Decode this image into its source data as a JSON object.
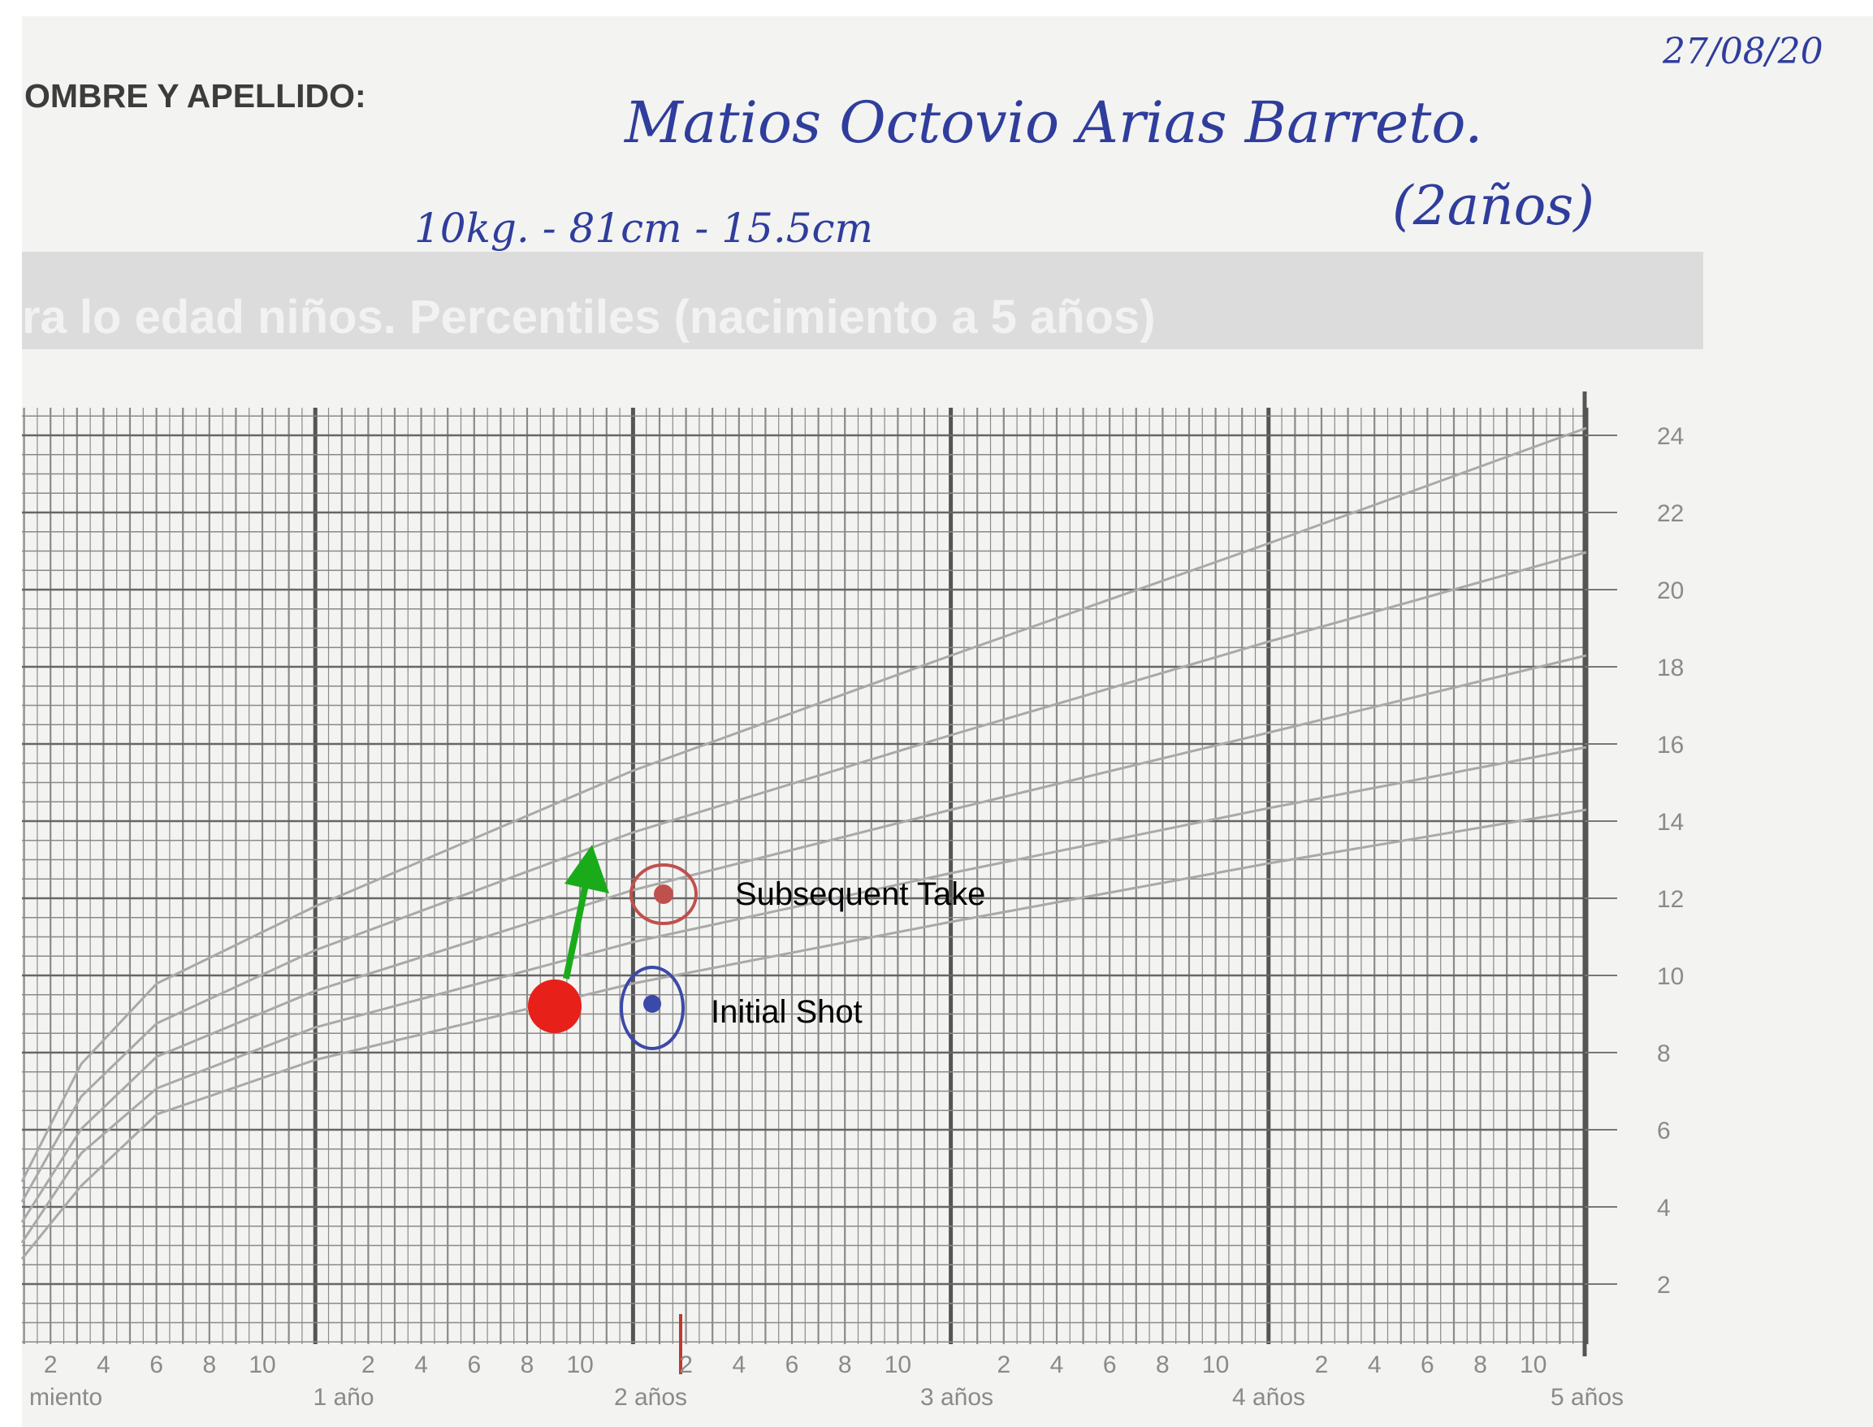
{
  "header": {
    "name_label": "OMBRE Y APELLIDO:",
    "name": "Matios Octovio Arias Barreto.",
    "details": "10kg. - 81cm - 15.5cm",
    "age": "(2años)",
    "date": "27/08/20"
  },
  "chart": {
    "banner": "ra lo edad niños. Percentiles (nacimiento a 5 años)",
    "y_labels": [
      2,
      4,
      6,
      8,
      10,
      12,
      14,
      16,
      18,
      20,
      22,
      24
    ],
    "month_labels": [
      [
        2,
        4,
        6,
        8,
        10
      ],
      [
        2,
        4,
        6,
        8,
        10
      ],
      [
        2,
        4,
        6,
        8,
        10
      ],
      [
        2,
        4,
        6,
        8,
        10
      ],
      [
        2,
        4,
        6,
        8,
        10
      ]
    ],
    "year_labels": [
      "miento",
      "1 año",
      "2 años",
      "3 años",
      "4 años",
      "5 años"
    ]
  },
  "annotations": {
    "subsequent": "Subsequent Take",
    "initial": "Initial Shot"
  }
}
